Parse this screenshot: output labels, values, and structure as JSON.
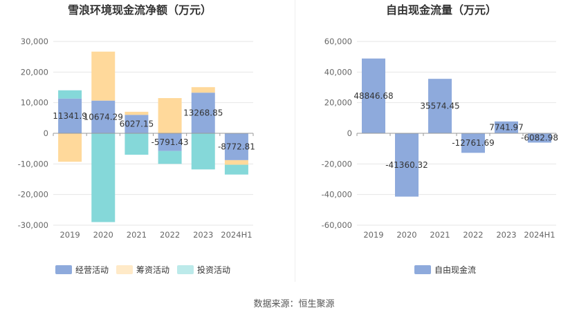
{
  "source_note": "数据来源：恒生聚源",
  "colors": {
    "operating": "#8eaadc",
    "financing": "#ffd99b",
    "investing": "#85d8d9",
    "free_cash": "#8eaadc",
    "grid": "#e6e6e6",
    "axis_text": "#666666",
    "title_text": "#333333"
  },
  "chart_data": [
    {
      "type": "bar",
      "stacked": true,
      "title": "雪浪环境现金流净额（万元）",
      "categories": [
        "2019",
        "2020",
        "2021",
        "2022",
        "2023",
        "2024H1"
      ],
      "ylim": [
        -30000,
        30000
      ],
      "yticks": [
        30000,
        20000,
        10000,
        0,
        -10000,
        -20000,
        -30000
      ],
      "ytick_labels": [
        "30,000",
        "20,000",
        "10,000",
        "0",
        "-10,000",
        "-20,000",
        "-30,000"
      ],
      "grid": true,
      "legend_position": "bottom",
      "series": [
        {
          "name": "经营活动",
          "color_key": "operating",
          "values": [
            11341.9,
            10674.29,
            6027.15,
            -5791.43,
            13268.85,
            -8772.81
          ]
        },
        {
          "name": "筹资活动",
          "color_key": "financing",
          "values": [
            -9300,
            16000,
            1000,
            11500,
            1800,
            -1500
          ]
        },
        {
          "name": "投资活动",
          "color_key": "investing",
          "values": [
            2700,
            -29000,
            -7000,
            -4200,
            -11800,
            -3200
          ]
        }
      ],
      "data_labels": [
        "11341.9",
        "10674.29",
        "6027.15",
        "-5791.43",
        "13268.85",
        "-8772.81"
      ]
    },
    {
      "type": "bar",
      "stacked": false,
      "title": "自由现金流量（万元）",
      "categories": [
        "2019",
        "2020",
        "2021",
        "2022",
        "2023",
        "2024H1"
      ],
      "ylim": [
        -60000,
        60000
      ],
      "yticks": [
        60000,
        40000,
        20000,
        0,
        -20000,
        -40000,
        -60000
      ],
      "ytick_labels": [
        "60,000",
        "40,000",
        "20,000",
        "0",
        "-20,000",
        "-40,000",
        "-60,000"
      ],
      "grid": true,
      "legend_position": "bottom",
      "series": [
        {
          "name": "自由现金流",
          "color_key": "free_cash",
          "values": [
            48846.68,
            -41360.32,
            35574.45,
            -12761.69,
            7741.97,
            -6082.98
          ]
        }
      ],
      "data_labels": [
        "48846.68",
        "-41360.32",
        "35574.45",
        "-12761.69",
        "7741.97",
        "-6082.98"
      ]
    }
  ]
}
